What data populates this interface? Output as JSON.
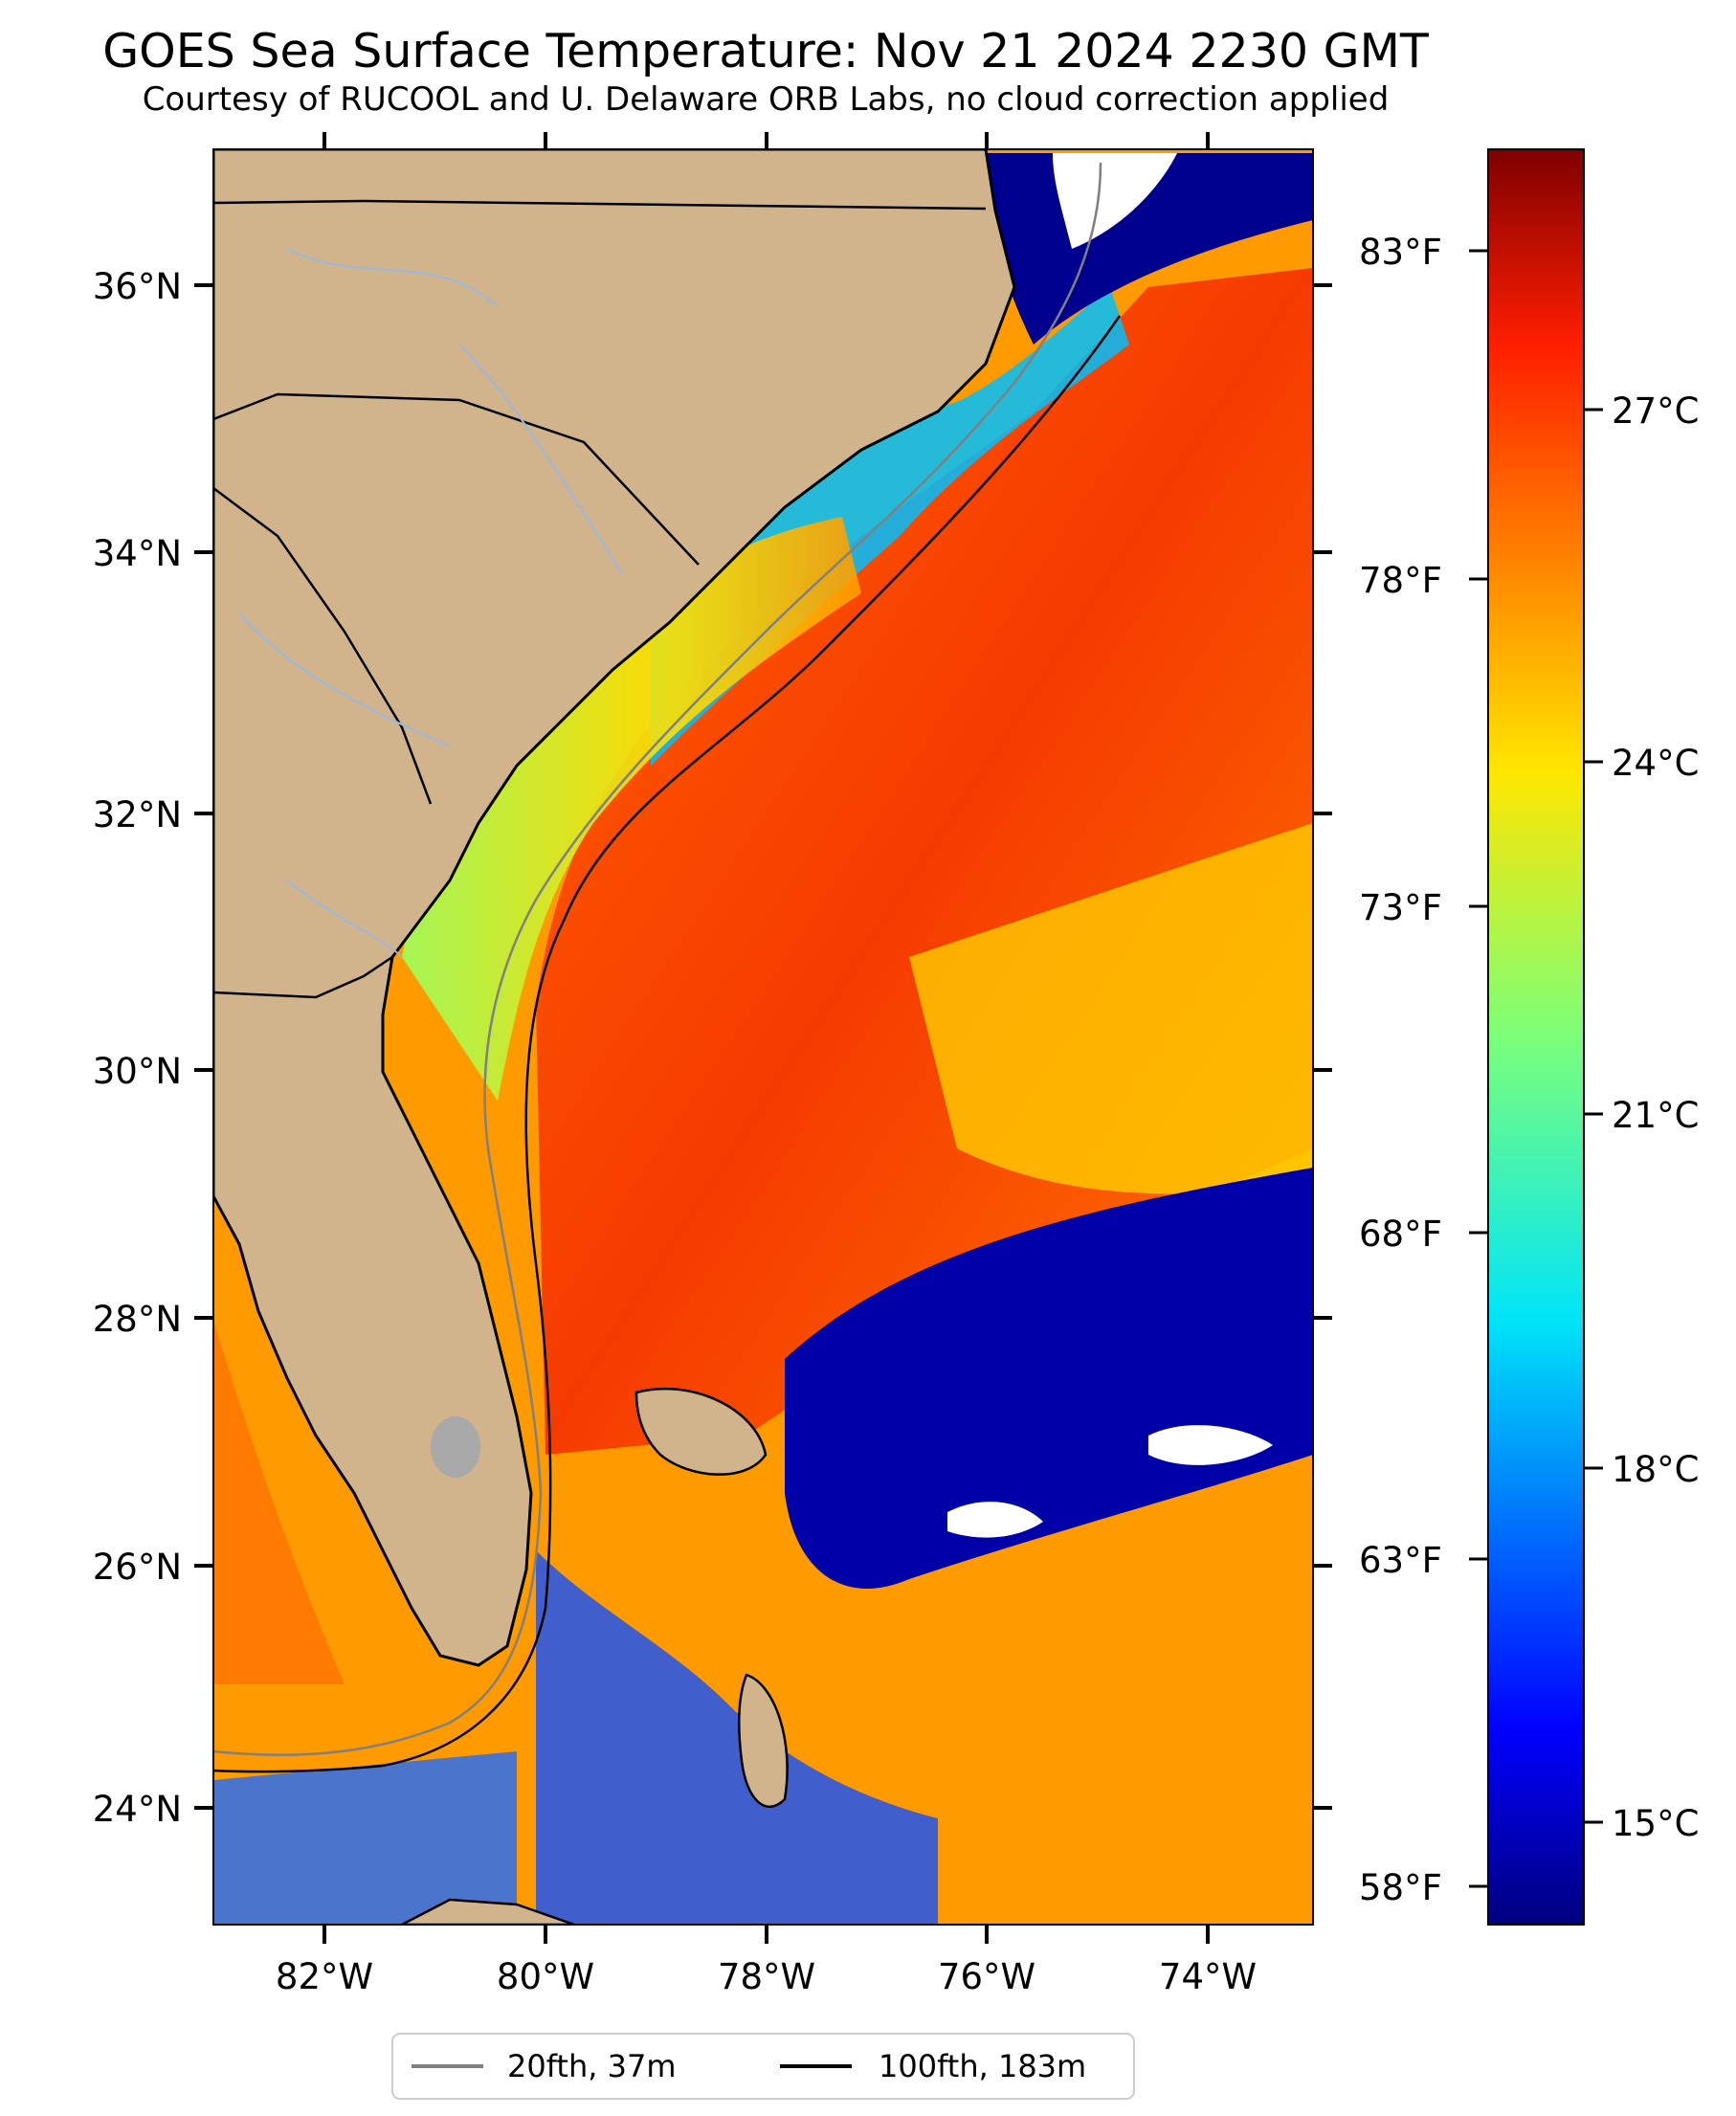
{
  "title": "GOES Sea Surface Temperature: Nov 21 2024 2230 GMT",
  "subtitle": "Courtesy of RUCOOL and U. Delaware ORB Labs, no cloud correction applied",
  "map": {
    "lat_labels": [
      "36°N",
      "34°N",
      "32°N",
      "30°N",
      "28°N",
      "26°N",
      "24°N"
    ],
    "lon_labels": [
      "82°W",
      "80°W",
      "78°W",
      "76°W",
      "74°W"
    ],
    "f_labels": [
      "83°F",
      "78°F",
      "73°F",
      "68°F",
      "63°F",
      "58°F"
    ],
    "land_color": "#d2b48c",
    "cloud_color": "#ffffff"
  },
  "colorbar": {
    "labels": [
      "27°C",
      "24°C",
      "21°C",
      "18°C",
      "15°C"
    ],
    "colormap": "jet"
  },
  "legend": {
    "items": [
      {
        "label": "20fth, 37m",
        "color": "#808080"
      },
      {
        "label": "100fth, 183m",
        "color": "#000000"
      }
    ]
  }
}
